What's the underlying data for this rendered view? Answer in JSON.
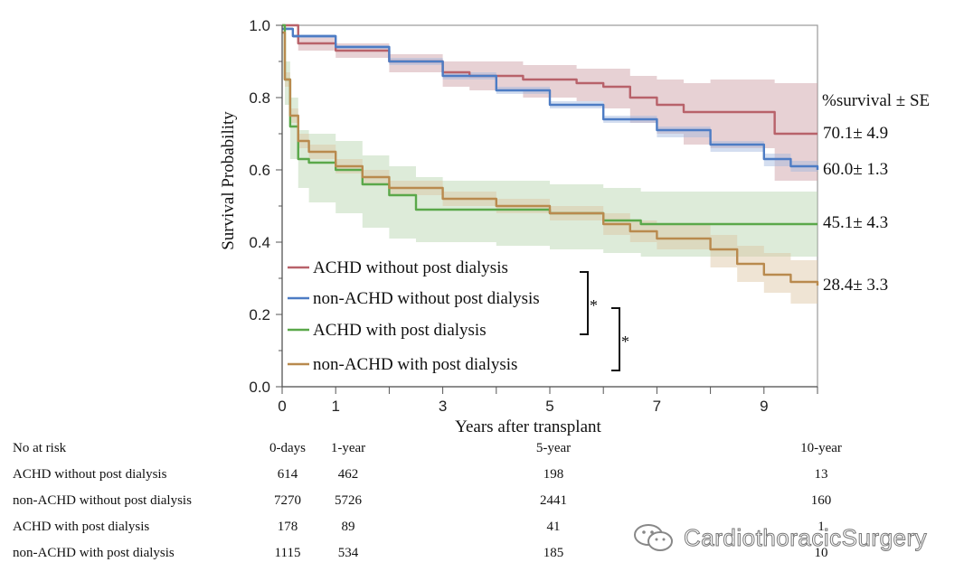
{
  "chart_data": {
    "type": "line",
    "subtype": "kaplan-meier survival",
    "xlabel": "Years after transplant",
    "ylabel": "Survival Probability",
    "xlim": [
      0,
      10
    ],
    "ylim": [
      0,
      1
    ],
    "x_ticks": [
      0,
      1,
      3,
      5,
      7,
      9
    ],
    "y_ticks": [
      "0.0",
      "0.2",
      "0.4",
      "0.6",
      "0.8",
      "1.0"
    ],
    "end_header": "%survival ± SE",
    "series": [
      {
        "name": "ACHD without post dialysis",
        "color": "#b8626a",
        "band_color": "#c99aa0",
        "end_label": "70.1± 4.9",
        "x": [
          0,
          0.3,
          1,
          2,
          3,
          3.5,
          4.5,
          5.5,
          6,
          6.5,
          7,
          7.5,
          8,
          9.2,
          10
        ],
        "y": [
          1.0,
          0.95,
          0.93,
          0.9,
          0.87,
          0.86,
          0.85,
          0.84,
          0.83,
          0.8,
          0.78,
          0.76,
          0.76,
          0.7,
          0.7
        ],
        "lower": [
          1.0,
          0.93,
          0.91,
          0.87,
          0.83,
          0.82,
          0.8,
          0.79,
          0.77,
          0.73,
          0.7,
          0.67,
          0.66,
          0.57,
          0.56
        ],
        "upper": [
          1.0,
          0.97,
          0.95,
          0.92,
          0.9,
          0.9,
          0.89,
          0.88,
          0.88,
          0.86,
          0.85,
          0.84,
          0.85,
          0.84,
          0.84
        ]
      },
      {
        "name": "non-ACHD without post dialysis",
        "color": "#4d7cc4",
        "band_color": "#9fb6dd",
        "end_label": "60.0± 1.3",
        "x": [
          0,
          0.2,
          1,
          2,
          3,
          4,
          5,
          6,
          7,
          8,
          9,
          9.5,
          10
        ],
        "y": [
          0.99,
          0.97,
          0.94,
          0.9,
          0.86,
          0.82,
          0.78,
          0.74,
          0.71,
          0.67,
          0.63,
          0.61,
          0.6
        ],
        "lower": [
          0.99,
          0.965,
          0.935,
          0.89,
          0.85,
          0.81,
          0.77,
          0.73,
          0.69,
          0.65,
          0.61,
          0.595,
          0.585
        ],
        "upper": [
          0.995,
          0.975,
          0.945,
          0.91,
          0.87,
          0.83,
          0.79,
          0.75,
          0.72,
          0.68,
          0.645,
          0.625,
          0.615
        ]
      },
      {
        "name": "ACHD with post dialysis",
        "color": "#5aa84a",
        "band_color": "#b4d2aa",
        "end_label": "45.1± 4.3",
        "x": [
          0,
          0.05,
          0.15,
          0.3,
          0.5,
          1,
          1.5,
          2,
          2.5,
          3,
          4,
          5,
          6,
          6.7,
          10
        ],
        "y": [
          1.0,
          0.85,
          0.72,
          0.63,
          0.62,
          0.6,
          0.56,
          0.53,
          0.49,
          0.49,
          0.49,
          0.48,
          0.46,
          0.45,
          0.45
        ],
        "lower": [
          1.0,
          0.78,
          0.63,
          0.55,
          0.51,
          0.48,
          0.44,
          0.41,
          0.4,
          0.4,
          0.39,
          0.38,
          0.37,
          0.36,
          0.36
        ],
        "upper": [
          1.0,
          0.9,
          0.8,
          0.71,
          0.7,
          0.68,
          0.64,
          0.61,
          0.58,
          0.57,
          0.57,
          0.56,
          0.55,
          0.54,
          0.54
        ]
      },
      {
        "name": "non-ACHD with post dialysis",
        "color": "#b98a4e",
        "band_color": "#dcc3a0",
        "end_label": "28.4± 3.3",
        "x": [
          0,
          0.05,
          0.15,
          0.3,
          0.5,
          1,
          1.5,
          2,
          3,
          4,
          5,
          6,
          6.5,
          7,
          8,
          8.5,
          9,
          9.5,
          10
        ],
        "y": [
          0.98,
          0.85,
          0.75,
          0.68,
          0.65,
          0.61,
          0.58,
          0.55,
          0.52,
          0.5,
          0.48,
          0.45,
          0.43,
          0.41,
          0.38,
          0.34,
          0.31,
          0.29,
          0.28
        ],
        "lower": [
          0.98,
          0.83,
          0.73,
          0.66,
          0.63,
          0.59,
          0.56,
          0.53,
          0.5,
          0.48,
          0.46,
          0.42,
          0.4,
          0.38,
          0.33,
          0.29,
          0.26,
          0.23,
          0.22
        ],
        "upper": [
          0.98,
          0.87,
          0.77,
          0.7,
          0.67,
          0.63,
          0.6,
          0.57,
          0.54,
          0.52,
          0.5,
          0.48,
          0.46,
          0.45,
          0.42,
          0.39,
          0.37,
          0.35,
          0.35
        ]
      }
    ],
    "significance": [
      "*",
      "*"
    ]
  },
  "risk_table": {
    "title": "No at risk",
    "columns": [
      "0-days",
      "1-year",
      "5-year",
      "10-year"
    ],
    "rows": [
      {
        "label": "ACHD without post dialysis",
        "values": [
          "614",
          "462",
          "198",
          "13"
        ]
      },
      {
        "label": "non-ACHD without post dialysis",
        "values": [
          "7270",
          "5726",
          "2441",
          "160"
        ]
      },
      {
        "label": "ACHD with post dialysis",
        "values": [
          "178",
          "89",
          "41",
          "1"
        ]
      },
      {
        "label": "non-ACHD with post dialysis",
        "values": [
          "1115",
          "534",
          "185",
          "10"
        ]
      }
    ]
  },
  "watermark": {
    "text": "CardiothoracicSurgery",
    "icon": "wechat-icon"
  }
}
